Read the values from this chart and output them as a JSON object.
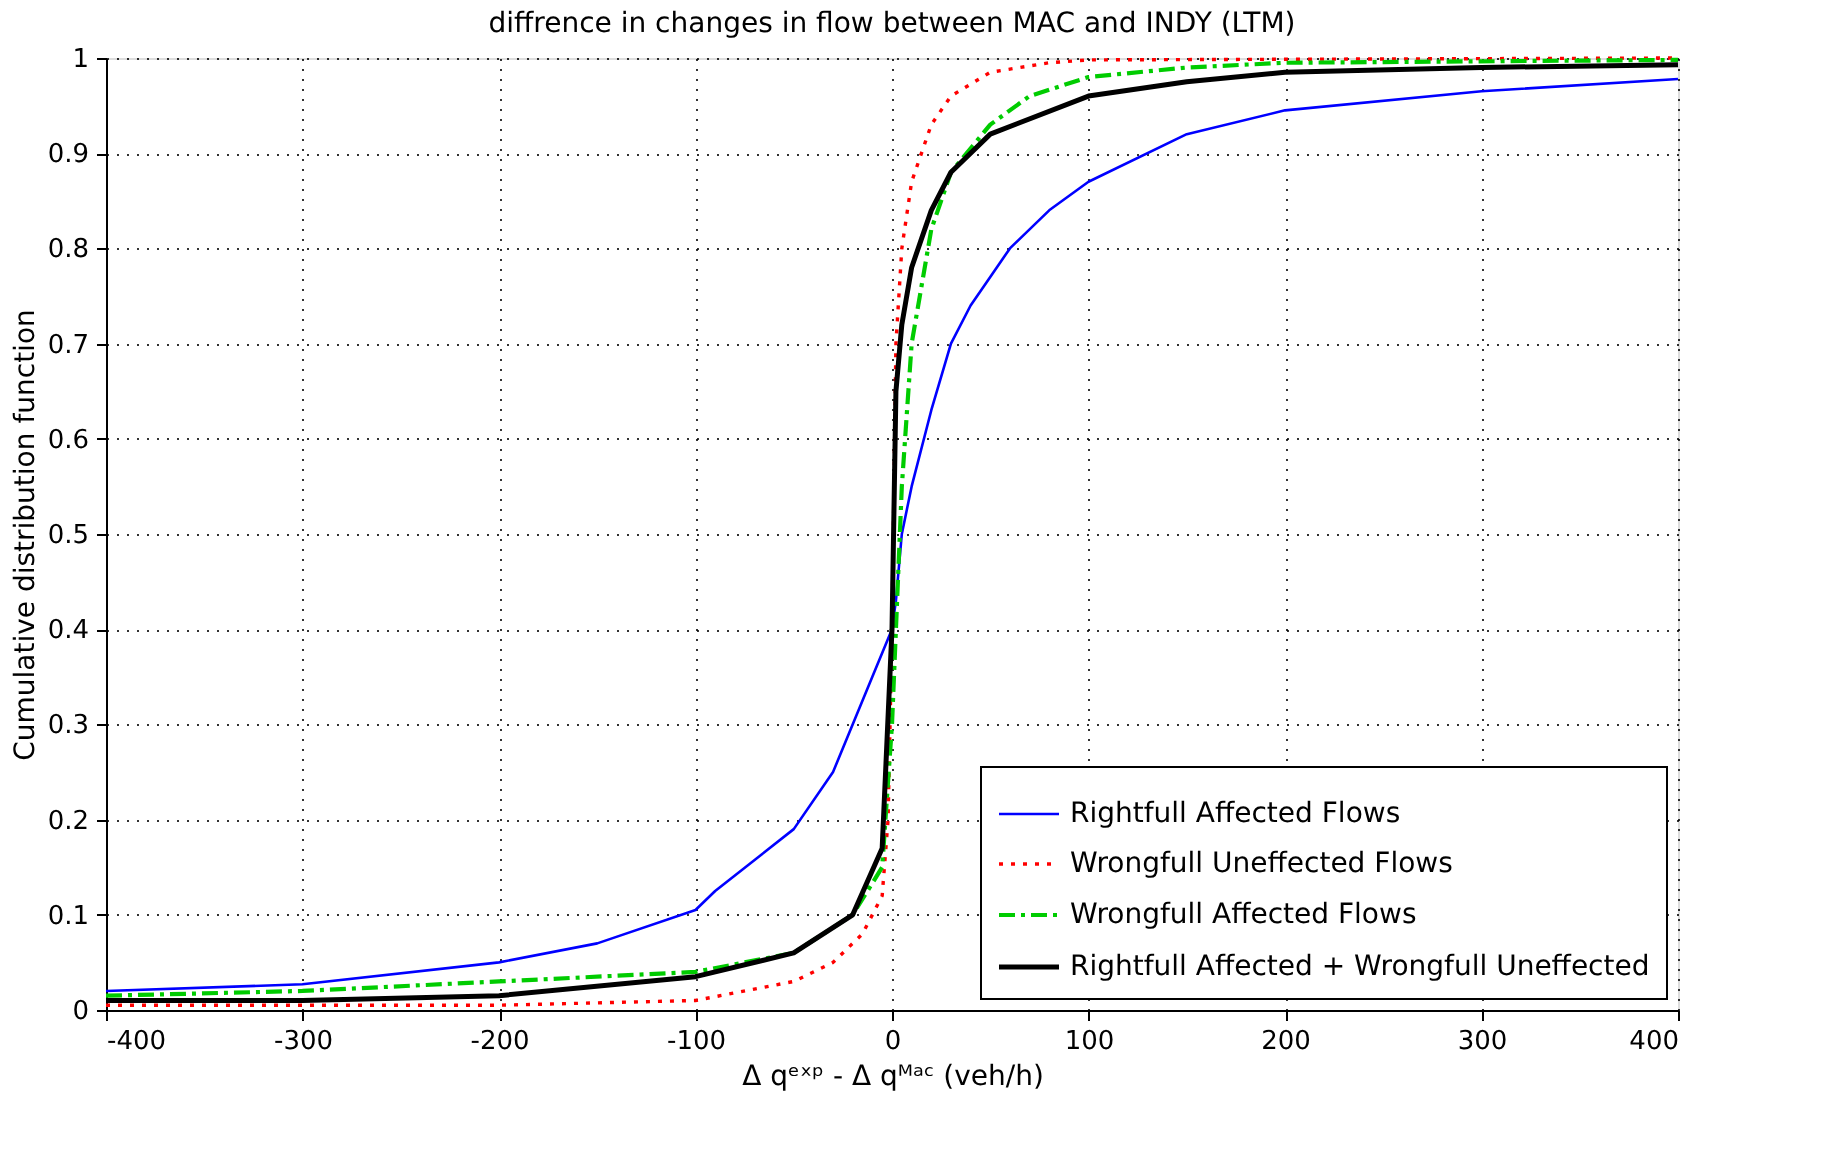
{
  "chart_data": {
    "type": "line",
    "title": "diffrence in changes in flow between MAC and INDY (LTM)",
    "xlabel": "Δ qᵉˣᵖ - Δ qᴹᵃᶜ (veh/h)",
    "ylabel": "Cumulative distribution function",
    "xlim": [
      -400,
      400
    ],
    "xticks": [
      -400,
      -300,
      -200,
      -100,
      0,
      100,
      200,
      300,
      400
    ],
    "ylim": [
      0,
      1
    ],
    "yticks": [
      0,
      0.1,
      0.2,
      0.3,
      0.4,
      0.5,
      0.6,
      0.7,
      0.8,
      0.9,
      1
    ],
    "grid": true,
    "legend": "bottom right",
    "marker": "none",
    "series": [
      {
        "name": "Rightfull Affected Flows",
        "color": "#0000ff",
        "line_style": "solid",
        "x": [
          -400,
          -300,
          -200,
          -150,
          -100,
          -90,
          -50,
          -30,
          -10,
          0,
          2,
          5,
          10,
          20,
          30,
          40,
          50,
          60,
          80,
          100,
          150,
          200,
          300,
          400
        ],
        "values": [
          0.02,
          0.027,
          0.05,
          0.07,
          0.105,
          0.125,
          0.19,
          0.25,
          0.35,
          0.4,
          0.43,
          0.5,
          0.55,
          0.63,
          0.7,
          0.74,
          0.77,
          0.8,
          0.84,
          0.87,
          0.92,
          0.945,
          0.965,
          0.978
        ]
      },
      {
        "name": "Wrongfull Uneffected Flows",
        "color": "#ff0000",
        "line_style": "dotted",
        "x": [
          -400,
          -200,
          -100,
          -50,
          -30,
          -15,
          -5,
          -2,
          0,
          2,
          5,
          10,
          20,
          30,
          50,
          80,
          100,
          400
        ],
        "values": [
          0.005,
          0.005,
          0.01,
          0.03,
          0.05,
          0.08,
          0.12,
          0.2,
          0.4,
          0.7,
          0.8,
          0.87,
          0.93,
          0.96,
          0.985,
          0.995,
          0.998,
          1.0
        ]
      },
      {
        "name": "Wrongfull Affected Flows",
        "color": "#00cc00",
        "line_style": "dashed",
        "x": [
          -400,
          -300,
          -200,
          -100,
          -50,
          -20,
          -5,
          0,
          5,
          10,
          20,
          30,
          50,
          70,
          100,
          150,
          200,
          400
        ],
        "values": [
          0.015,
          0.02,
          0.03,
          0.04,
          0.06,
          0.1,
          0.15,
          0.3,
          0.55,
          0.7,
          0.82,
          0.88,
          0.93,
          0.96,
          0.98,
          0.99,
          0.995,
          0.998
        ]
      },
      {
        "name": "Rightfull Affected + Wrongfull Uneffected",
        "color": "#000000",
        "line_style": "solid",
        "x": [
          -400,
          -300,
          -200,
          -100,
          -50,
          -20,
          -5,
          0,
          2,
          5,
          10,
          20,
          30,
          50,
          100,
          150,
          200,
          300,
          400
        ],
        "values": [
          0.01,
          0.01,
          0.015,
          0.035,
          0.06,
          0.1,
          0.17,
          0.4,
          0.65,
          0.72,
          0.78,
          0.84,
          0.88,
          0.92,
          0.96,
          0.975,
          0.985,
          0.99,
          0.993
        ]
      }
    ]
  }
}
